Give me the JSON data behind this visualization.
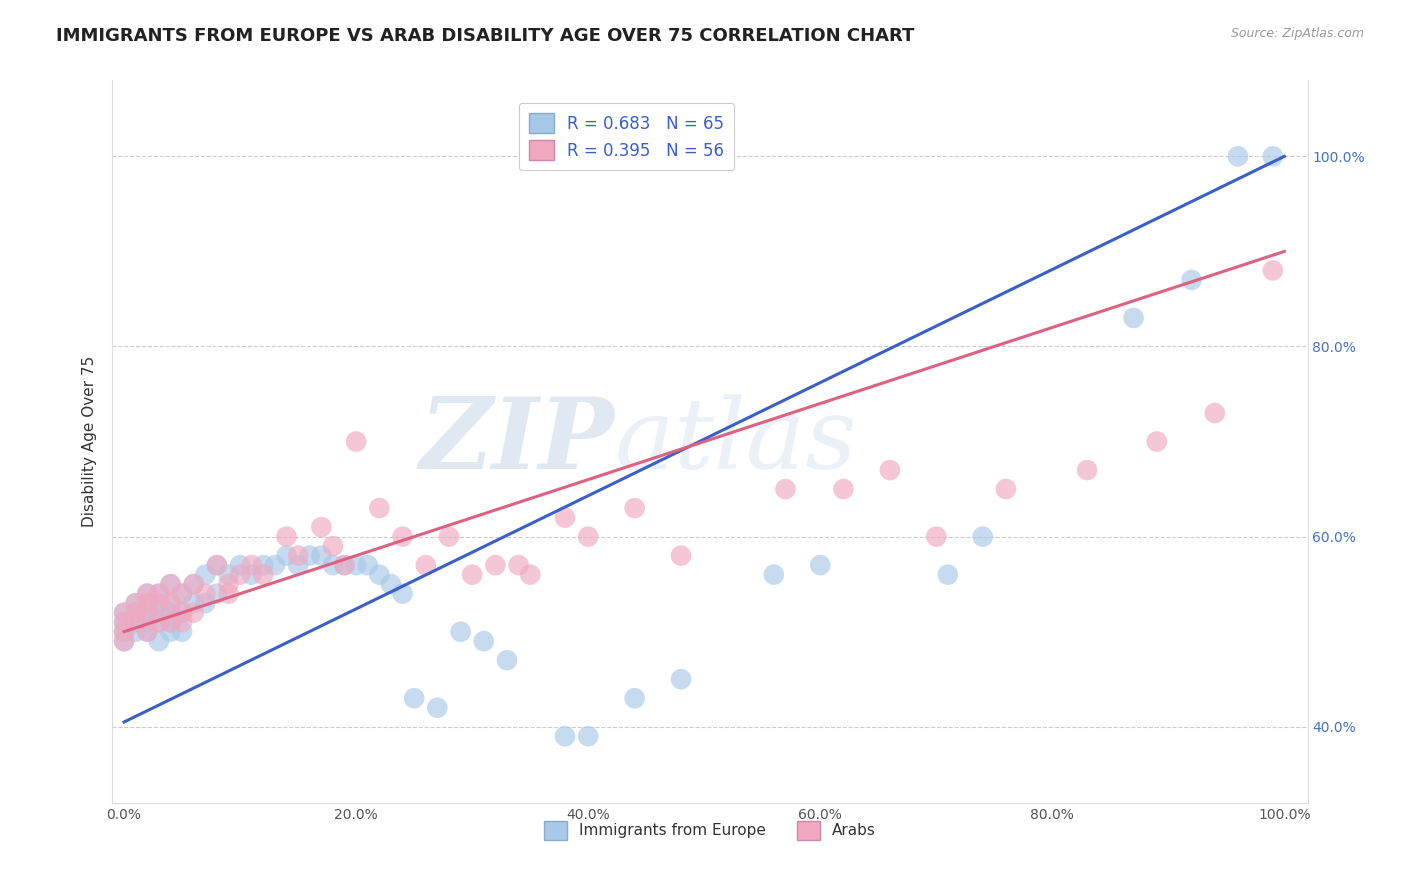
{
  "title": "IMMIGRANTS FROM EUROPE VS ARAB DISABILITY AGE OVER 75 CORRELATION CHART",
  "source": "Source: ZipAtlas.com",
  "ylabel": "Disability Age Over 75",
  "xlim": [
    -0.01,
    1.02
  ],
  "ylim": [
    0.32,
    1.08
  ],
  "xtick_labels": [
    "0.0%",
    "20.0%",
    "40.0%",
    "60.0%",
    "80.0%",
    "100.0%"
  ],
  "ytick_labels": [
    "40.0%",
    "60.0%",
    "80.0%",
    "100.0%"
  ],
  "ytick_positions": [
    0.4,
    0.6,
    0.8,
    1.0
  ],
  "xtick_positions": [
    0.0,
    0.2,
    0.4,
    0.6,
    0.8,
    1.0
  ],
  "legend_blue_label": "R = 0.683   N = 65",
  "legend_pink_label": "R = 0.395   N = 56",
  "blue_color": "#a8c8e8",
  "pink_color": "#f0a8c0",
  "blue_line_color": "#3a5fc8",
  "pink_line_color": "#e06080",
  "watermark_zip": "ZIP",
  "watermark_atlas": "atlas",
  "grid_color": "#cccccc",
  "background_color": "#ffffff",
  "title_fontsize": 13,
  "axis_label_fontsize": 11,
  "tick_fontsize": 10,
  "legend_fontsize": 12,
  "right_tick_color": "#4472c4",
  "blue_line_start_y": 0.405,
  "blue_line_end_y": 1.0,
  "pink_line_start_y": 0.5,
  "pink_line_end_y": 0.9,
  "blue_x": [
    0.0,
    0.0,
    0.0,
    0.0,
    0.01,
    0.01,
    0.01,
    0.01,
    0.02,
    0.02,
    0.02,
    0.02,
    0.02,
    0.03,
    0.03,
    0.03,
    0.03,
    0.03,
    0.04,
    0.04,
    0.04,
    0.04,
    0.04,
    0.05,
    0.05,
    0.05,
    0.06,
    0.06,
    0.07,
    0.07,
    0.08,
    0.08,
    0.09,
    0.1,
    0.11,
    0.12,
    0.13,
    0.14,
    0.15,
    0.16,
    0.17,
    0.18,
    0.19,
    0.2,
    0.21,
    0.22,
    0.23,
    0.24,
    0.25,
    0.27,
    0.29,
    0.31,
    0.33,
    0.38,
    0.4,
    0.44,
    0.48,
    0.56,
    0.6,
    0.71,
    0.74,
    0.87,
    0.92,
    0.96,
    0.99
  ],
  "blue_y": [
    0.52,
    0.51,
    0.5,
    0.49,
    0.53,
    0.52,
    0.51,
    0.5,
    0.54,
    0.53,
    0.52,
    0.51,
    0.5,
    0.54,
    0.53,
    0.52,
    0.51,
    0.49,
    0.55,
    0.53,
    0.52,
    0.51,
    0.5,
    0.54,
    0.52,
    0.5,
    0.55,
    0.53,
    0.56,
    0.53,
    0.57,
    0.54,
    0.56,
    0.57,
    0.56,
    0.57,
    0.57,
    0.58,
    0.57,
    0.58,
    0.58,
    0.57,
    0.57,
    0.57,
    0.57,
    0.56,
    0.55,
    0.54,
    0.43,
    0.42,
    0.5,
    0.49,
    0.47,
    0.39,
    0.39,
    0.43,
    0.45,
    0.56,
    0.57,
    0.56,
    0.6,
    0.83,
    0.87,
    1.0,
    1.0
  ],
  "pink_x": [
    0.0,
    0.0,
    0.0,
    0.0,
    0.01,
    0.01,
    0.01,
    0.02,
    0.02,
    0.02,
    0.02,
    0.03,
    0.03,
    0.03,
    0.04,
    0.04,
    0.04,
    0.05,
    0.05,
    0.05,
    0.06,
    0.06,
    0.07,
    0.08,
    0.09,
    0.09,
    0.1,
    0.11,
    0.12,
    0.14,
    0.15,
    0.17,
    0.18,
    0.19,
    0.2,
    0.22,
    0.24,
    0.26,
    0.28,
    0.3,
    0.32,
    0.34,
    0.35,
    0.38,
    0.4,
    0.44,
    0.48,
    0.57,
    0.62,
    0.66,
    0.7,
    0.76,
    0.83,
    0.89,
    0.94,
    0.99
  ],
  "pink_y": [
    0.52,
    0.51,
    0.5,
    0.49,
    0.53,
    0.52,
    0.51,
    0.54,
    0.53,
    0.52,
    0.5,
    0.54,
    0.53,
    0.51,
    0.55,
    0.53,
    0.51,
    0.54,
    0.52,
    0.51,
    0.55,
    0.52,
    0.54,
    0.57,
    0.55,
    0.54,
    0.56,
    0.57,
    0.56,
    0.6,
    0.58,
    0.61,
    0.59,
    0.57,
    0.7,
    0.63,
    0.6,
    0.57,
    0.6,
    0.56,
    0.57,
    0.57,
    0.56,
    0.62,
    0.6,
    0.63,
    0.58,
    0.65,
    0.65,
    0.67,
    0.6,
    0.65,
    0.67,
    0.7,
    0.73,
    0.88
  ]
}
